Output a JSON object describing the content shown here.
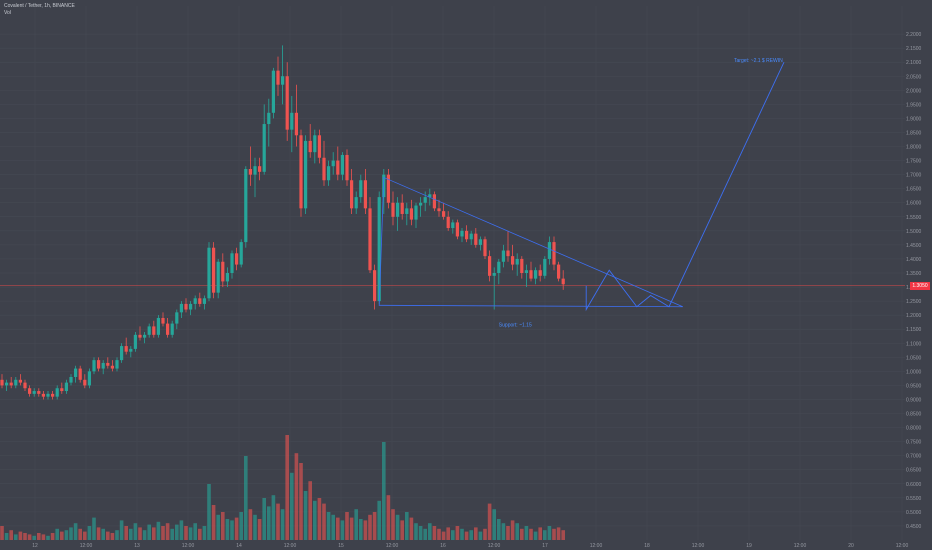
{
  "header": {
    "title": "Covalent / Tether, 1h, BINANCE",
    "indicator": "Vol"
  },
  "colors": {
    "up": "#26a69a",
    "down": "#ef5350",
    "drawing": "#3d6ff2",
    "price_line": "#e04a4a",
    "grid": "#474b55",
    "axis_text": "#9598a1",
    "background": "#3e414b"
  },
  "annotations": {
    "target": "Target: ~2.1 $ REWIN",
    "support": "Support: ~1.15"
  },
  "chart_data": {
    "type": "candlestick",
    "title": "Covalent / Tether, 1h, BINANCE",
    "y_axis": {
      "min": 0.4,
      "max": 2.3,
      "tick_labels": [
        "2.2000",
        "2.1500",
        "2.1000",
        "2.0500",
        "2.0000",
        "1.9500",
        "1.9000",
        "1.8500",
        "1.8000",
        "1.7500",
        "1.7000",
        "1.6500",
        "1.6000",
        "1.5500",
        "1.5000",
        "1.4500",
        "1.4000",
        "1.3500",
        "1.3000",
        "1.2500",
        "1.2000",
        "1.1500",
        "1.1000",
        "1.0500",
        "1.0000",
        "0.9500",
        "0.9000",
        "0.8500",
        "0.8000",
        "0.7500",
        "0.7000",
        "0.6500",
        "0.6000",
        "0.5500",
        "0.5000",
        "0.4500"
      ]
    },
    "x_axis": {
      "tick_labels": [
        "12",
        "12:00",
        "13",
        "12:00",
        "14",
        "12:00",
        "15",
        "12:00",
        "16",
        "12:00",
        "17",
        "12:00",
        "18",
        "12:00",
        "19",
        "12:00",
        "20",
        "12:00"
      ]
    },
    "last_price": 1.305,
    "price_tag": "1.3050",
    "candles": [
      {
        "o": 0.97,
        "h": 0.99,
        "l": 0.94,
        "c": 0.95
      },
      {
        "o": 0.95,
        "h": 0.97,
        "l": 0.93,
        "c": 0.96
      },
      {
        "o": 0.96,
        "h": 0.98,
        "l": 0.94,
        "c": 0.95
      },
      {
        "o": 0.95,
        "h": 0.98,
        "l": 0.94,
        "c": 0.97
      },
      {
        "o": 0.97,
        "h": 0.99,
        "l": 0.95,
        "c": 0.96
      },
      {
        "o": 0.96,
        "h": 0.97,
        "l": 0.93,
        "c": 0.94
      },
      {
        "o": 0.94,
        "h": 0.95,
        "l": 0.91,
        "c": 0.92
      },
      {
        "o": 0.92,
        "h": 0.94,
        "l": 0.91,
        "c": 0.93
      },
      {
        "o": 0.93,
        "h": 0.94,
        "l": 0.91,
        "c": 0.92
      },
      {
        "o": 0.92,
        "h": 0.93,
        "l": 0.9,
        "c": 0.91
      },
      {
        "o": 0.91,
        "h": 0.93,
        "l": 0.9,
        "c": 0.92
      },
      {
        "o": 0.92,
        "h": 0.93,
        "l": 0.9,
        "c": 0.91
      },
      {
        "o": 0.91,
        "h": 0.95,
        "l": 0.9,
        "c": 0.94
      },
      {
        "o": 0.94,
        "h": 0.96,
        "l": 0.92,
        "c": 0.93
      },
      {
        "o": 0.93,
        "h": 0.97,
        "l": 0.92,
        "c": 0.96
      },
      {
        "o": 0.96,
        "h": 0.99,
        "l": 0.95,
        "c": 0.98
      },
      {
        "o": 0.98,
        "h": 1.02,
        "l": 0.96,
        "c": 1.01
      },
      {
        "o": 1.01,
        "h": 1.02,
        "l": 0.96,
        "c": 0.97
      },
      {
        "o": 0.97,
        "h": 0.99,
        "l": 0.94,
        "c": 0.95
      },
      {
        "o": 0.95,
        "h": 1.01,
        "l": 0.94,
        "c": 1.0
      },
      {
        "o": 1.0,
        "h": 1.05,
        "l": 0.99,
        "c": 1.04
      },
      {
        "o": 1.04,
        "h": 1.05,
        "l": 1.0,
        "c": 1.01
      },
      {
        "o": 1.01,
        "h": 1.04,
        "l": 0.99,
        "c": 1.03
      },
      {
        "o": 1.03,
        "h": 1.05,
        "l": 1.01,
        "c": 1.02
      },
      {
        "o": 1.02,
        "h": 1.04,
        "l": 1.0,
        "c": 1.01
      },
      {
        "o": 1.01,
        "h": 1.05,
        "l": 1.0,
        "c": 1.04
      },
      {
        "o": 1.04,
        "h": 1.1,
        "l": 1.03,
        "c": 1.09
      },
      {
        "o": 1.09,
        "h": 1.12,
        "l": 1.06,
        "c": 1.07
      },
      {
        "o": 1.07,
        "h": 1.09,
        "l": 1.05,
        "c": 1.08
      },
      {
        "o": 1.08,
        "h": 1.14,
        "l": 1.07,
        "c": 1.13
      },
      {
        "o": 1.13,
        "h": 1.16,
        "l": 1.11,
        "c": 1.12
      },
      {
        "o": 1.12,
        "h": 1.14,
        "l": 1.1,
        "c": 1.13
      },
      {
        "o": 1.13,
        "h": 1.17,
        "l": 1.12,
        "c": 1.16
      },
      {
        "o": 1.16,
        "h": 1.18,
        "l": 1.12,
        "c": 1.13
      },
      {
        "o": 1.13,
        "h": 1.2,
        "l": 1.12,
        "c": 1.19
      },
      {
        "o": 1.19,
        "h": 1.21,
        "l": 1.16,
        "c": 1.17
      },
      {
        "o": 1.17,
        "h": 1.19,
        "l": 1.12,
        "c": 1.13
      },
      {
        "o": 1.13,
        "h": 1.18,
        "l": 1.12,
        "c": 1.17
      },
      {
        "o": 1.17,
        "h": 1.22,
        "l": 1.15,
        "c": 1.21
      },
      {
        "o": 1.21,
        "h": 1.25,
        "l": 1.19,
        "c": 1.24
      },
      {
        "o": 1.24,
        "h": 1.26,
        "l": 1.21,
        "c": 1.22
      },
      {
        "o": 1.22,
        "h": 1.25,
        "l": 1.2,
        "c": 1.24
      },
      {
        "o": 1.24,
        "h": 1.27,
        "l": 1.22,
        "c": 1.26
      },
      {
        "o": 1.26,
        "h": 1.28,
        "l": 1.23,
        "c": 1.24
      },
      {
        "o": 1.24,
        "h": 1.27,
        "l": 1.22,
        "c": 1.26
      },
      {
        "o": 1.26,
        "h": 1.46,
        "l": 1.25,
        "c": 1.44
      },
      {
        "o": 1.44,
        "h": 1.46,
        "l": 1.26,
        "c": 1.28
      },
      {
        "o": 1.28,
        "h": 1.4,
        "l": 1.26,
        "c": 1.39
      },
      {
        "o": 1.39,
        "h": 1.42,
        "l": 1.3,
        "c": 1.32
      },
      {
        "o": 1.32,
        "h": 1.37,
        "l": 1.3,
        "c": 1.35
      },
      {
        "o": 1.35,
        "h": 1.43,
        "l": 1.33,
        "c": 1.42
      },
      {
        "o": 1.42,
        "h": 1.44,
        "l": 1.36,
        "c": 1.38
      },
      {
        "o": 1.38,
        "h": 1.47,
        "l": 1.37,
        "c": 1.46
      },
      {
        "o": 1.46,
        "h": 1.73,
        "l": 1.44,
        "c": 1.72
      },
      {
        "o": 1.72,
        "h": 1.8,
        "l": 1.66,
        "c": 1.7
      },
      {
        "o": 1.7,
        "h": 1.76,
        "l": 1.62,
        "c": 1.73
      },
      {
        "o": 1.73,
        "h": 1.76,
        "l": 1.68,
        "c": 1.71
      },
      {
        "o": 1.71,
        "h": 1.95,
        "l": 1.7,
        "c": 1.88
      },
      {
        "o": 1.88,
        "h": 1.97,
        "l": 1.8,
        "c": 1.92
      },
      {
        "o": 1.92,
        "h": 2.08,
        "l": 1.9,
        "c": 2.07
      },
      {
        "o": 2.07,
        "h": 2.12,
        "l": 1.98,
        "c": 2.02
      },
      {
        "o": 2.02,
        "h": 2.16,
        "l": 1.95,
        "c": 2.05
      },
      {
        "o": 2.05,
        "h": 2.1,
        "l": 1.82,
        "c": 1.86
      },
      {
        "o": 1.86,
        "h": 1.98,
        "l": 1.78,
        "c": 1.92
      },
      {
        "o": 1.92,
        "h": 2.02,
        "l": 1.8,
        "c": 1.84
      },
      {
        "o": 1.84,
        "h": 1.86,
        "l": 1.55,
        "c": 1.58
      },
      {
        "o": 1.58,
        "h": 1.84,
        "l": 1.56,
        "c": 1.82
      },
      {
        "o": 1.82,
        "h": 1.88,
        "l": 1.76,
        "c": 1.78
      },
      {
        "o": 1.78,
        "h": 1.86,
        "l": 1.74,
        "c": 1.84
      },
      {
        "o": 1.84,
        "h": 1.86,
        "l": 1.74,
        "c": 1.76
      },
      {
        "o": 1.76,
        "h": 1.82,
        "l": 1.66,
        "c": 1.68
      },
      {
        "o": 1.68,
        "h": 1.75,
        "l": 1.66,
        "c": 1.73
      },
      {
        "o": 1.73,
        "h": 1.78,
        "l": 1.7,
        "c": 1.75
      },
      {
        "o": 1.75,
        "h": 1.8,
        "l": 1.68,
        "c": 1.7
      },
      {
        "o": 1.7,
        "h": 1.78,
        "l": 1.68,
        "c": 1.77
      },
      {
        "o": 1.77,
        "h": 1.79,
        "l": 1.66,
        "c": 1.68
      },
      {
        "o": 1.68,
        "h": 1.72,
        "l": 1.56,
        "c": 1.58
      },
      {
        "o": 1.58,
        "h": 1.64,
        "l": 1.56,
        "c": 1.62
      },
      {
        "o": 1.62,
        "h": 1.7,
        "l": 1.6,
        "c": 1.68
      },
      {
        "o": 1.68,
        "h": 1.72,
        "l": 1.56,
        "c": 1.58
      },
      {
        "o": 1.58,
        "h": 1.62,
        "l": 1.35,
        "c": 1.36
      },
      {
        "o": 1.36,
        "h": 1.38,
        "l": 1.22,
        "c": 1.25
      },
      {
        "o": 1.25,
        "h": 1.64,
        "l": 1.24,
        "c": 1.62
      },
      {
        "o": 1.62,
        "h": 1.72,
        "l": 1.56,
        "c": 1.7
      },
      {
        "o": 1.7,
        "h": 1.72,
        "l": 1.58,
        "c": 1.6
      },
      {
        "o": 1.6,
        "h": 1.64,
        "l": 1.52,
        "c": 1.55
      },
      {
        "o": 1.55,
        "h": 1.62,
        "l": 1.5,
        "c": 1.6
      },
      {
        "o": 1.6,
        "h": 1.63,
        "l": 1.54,
        "c": 1.56
      },
      {
        "o": 1.56,
        "h": 1.6,
        "l": 1.52,
        "c": 1.58
      },
      {
        "o": 1.58,
        "h": 1.61,
        "l": 1.52,
        "c": 1.54
      },
      {
        "o": 1.54,
        "h": 1.6,
        "l": 1.51,
        "c": 1.59
      },
      {
        "o": 1.59,
        "h": 1.62,
        "l": 1.55,
        "c": 1.6
      },
      {
        "o": 1.6,
        "h": 1.64,
        "l": 1.57,
        "c": 1.62
      },
      {
        "o": 1.62,
        "h": 1.65,
        "l": 1.59,
        "c": 1.63
      },
      {
        "o": 1.63,
        "h": 1.64,
        "l": 1.57,
        "c": 1.58
      },
      {
        "o": 1.58,
        "h": 1.61,
        "l": 1.55,
        "c": 1.57
      },
      {
        "o": 1.57,
        "h": 1.6,
        "l": 1.54,
        "c": 1.55
      },
      {
        "o": 1.55,
        "h": 1.57,
        "l": 1.5,
        "c": 1.51
      },
      {
        "o": 1.51,
        "h": 1.54,
        "l": 1.49,
        "c": 1.53
      },
      {
        "o": 1.53,
        "h": 1.54,
        "l": 1.47,
        "c": 1.48
      },
      {
        "o": 1.48,
        "h": 1.51,
        "l": 1.46,
        "c": 1.5
      },
      {
        "o": 1.5,
        "h": 1.52,
        "l": 1.46,
        "c": 1.47
      },
      {
        "o": 1.47,
        "h": 1.5,
        "l": 1.45,
        "c": 1.49
      },
      {
        "o": 1.49,
        "h": 1.51,
        "l": 1.44,
        "c": 1.45
      },
      {
        "o": 1.45,
        "h": 1.48,
        "l": 1.43,
        "c": 1.47
      },
      {
        "o": 1.47,
        "h": 1.48,
        "l": 1.4,
        "c": 1.41
      },
      {
        "o": 1.41,
        "h": 1.43,
        "l": 1.32,
        "c": 1.34
      },
      {
        "o": 1.34,
        "h": 1.37,
        "l": 1.22,
        "c": 1.35
      },
      {
        "o": 1.35,
        "h": 1.4,
        "l": 1.31,
        "c": 1.39
      },
      {
        "o": 1.39,
        "h": 1.45,
        "l": 1.37,
        "c": 1.43
      },
      {
        "o": 1.43,
        "h": 1.5,
        "l": 1.39,
        "c": 1.41
      },
      {
        "o": 1.41,
        "h": 1.45,
        "l": 1.36,
        "c": 1.38
      },
      {
        "o": 1.38,
        "h": 1.42,
        "l": 1.34,
        "c": 1.4
      },
      {
        "o": 1.4,
        "h": 1.41,
        "l": 1.33,
        "c": 1.35
      },
      {
        "o": 1.35,
        "h": 1.38,
        "l": 1.3,
        "c": 1.36
      },
      {
        "o": 1.36,
        "h": 1.39,
        "l": 1.32,
        "c": 1.33
      },
      {
        "o": 1.33,
        "h": 1.37,
        "l": 1.31,
        "c": 1.36
      },
      {
        "o": 1.36,
        "h": 1.38,
        "l": 1.32,
        "c": 1.34
      },
      {
        "o": 1.34,
        "h": 1.41,
        "l": 1.33,
        "c": 1.4
      },
      {
        "o": 1.4,
        "h": 1.48,
        "l": 1.38,
        "c": 1.46
      },
      {
        "o": 1.46,
        "h": 1.48,
        "l": 1.36,
        "c": 1.38
      },
      {
        "o": 1.38,
        "h": 1.39,
        "l": 1.32,
        "c": 1.33
      },
      {
        "o": 1.33,
        "h": 1.36,
        "l": 1.29,
        "c": 1.31
      }
    ],
    "volume": [
      0.1,
      0.05,
      0.07,
      0.04,
      0.06,
      0.05,
      0.04,
      0.03,
      0.05,
      0.04,
      0.03,
      0.05,
      0.08,
      0.06,
      0.07,
      0.09,
      0.12,
      0.08,
      0.06,
      0.1,
      0.16,
      0.09,
      0.08,
      0.06,
      0.05,
      0.07,
      0.14,
      0.1,
      0.08,
      0.12,
      0.09,
      0.07,
      0.11,
      0.09,
      0.13,
      0.1,
      0.12,
      0.08,
      0.11,
      0.14,
      0.1,
      0.09,
      0.12,
      0.08,
      0.1,
      0.4,
      0.25,
      0.18,
      0.2,
      0.15,
      0.14,
      0.16,
      0.2,
      0.6,
      0.22,
      0.18,
      0.15,
      0.3,
      0.24,
      0.32,
      0.26,
      0.22,
      0.75,
      0.48,
      0.62,
      0.55,
      0.35,
      0.42,
      0.28,
      0.3,
      0.26,
      0.2,
      0.18,
      0.16,
      0.14,
      0.2,
      0.16,
      0.22,
      0.15,
      0.14,
      0.18,
      0.2,
      0.28,
      0.7,
      0.32,
      0.22,
      0.18,
      0.14,
      0.2,
      0.16,
      0.12,
      0.1,
      0.08,
      0.12,
      0.1,
      0.08,
      0.06,
      0.09,
      0.07,
      0.1,
      0.08,
      0.06,
      0.07,
      0.09,
      0.06,
      0.08,
      0.26,
      0.22,
      0.15,
      0.12,
      0.1,
      0.14,
      0.12,
      0.08,
      0.1,
      0.08,
      0.06,
      0.09,
      0.07,
      0.1,
      0.08,
      0.09,
      0.07
    ],
    "drawing_points": {
      "wedge_top_start": {
        "i": 83,
        "p": 1.69
      },
      "wedge_tip": {
        "i": 148,
        "p": 1.23
      },
      "wedge_bottom_start": {
        "i": 82,
        "p": 1.235
      },
      "projection": [
        {
          "i": 127,
          "p": 1.305
        },
        {
          "i": 127,
          "p": 1.22
        },
        {
          "i": 132,
          "p": 1.36
        },
        {
          "i": 138,
          "p": 1.23
        },
        {
          "i": 141,
          "p": 1.27
        },
        {
          "i": 145,
          "p": 1.23
        },
        {
          "i": 170,
          "p": 2.1
        }
      ]
    }
  }
}
